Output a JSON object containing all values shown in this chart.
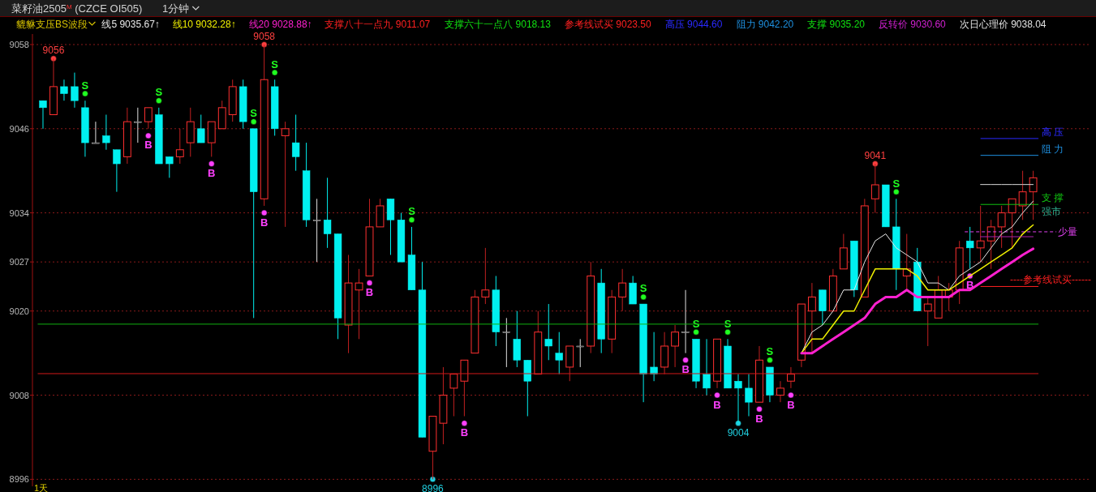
{
  "chart_data": {
    "type": "candlestick",
    "title": "菜籽油2505$^{M}$ (CZCE OI505)",
    "subtitle": "1分钟",
    "xlabel": "1天",
    "categories": [
      null,
      null,
      null,
      null,
      null,
      null,
      null,
      null,
      null,
      null,
      null,
      null,
      null,
      null,
      null,
      null,
      null,
      null,
      null,
      null,
      null,
      null,
      null,
      null,
      null,
      null,
      null,
      null,
      null,
      null,
      null,
      null,
      null,
      null,
      null,
      null,
      null,
      null,
      null,
      null,
      null,
      null,
      null,
      null,
      null,
      null,
      null,
      null,
      null,
      null,
      null,
      null,
      null,
      null,
      null,
      null,
      null,
      null,
      null,
      null,
      null,
      null,
      null,
      null,
      null,
      null,
      null,
      null,
      null,
      null,
      null,
      null,
      null,
      null,
      null,
      null,
      null,
      null,
      null,
      null,
      null,
      null,
      null,
      null,
      null,
      null,
      null,
      null,
      null,
      null,
      null,
      null,
      null,
      null,
      null
    ],
    "ohlc": [
      [
        9050,
        9050,
        9046,
        9049
      ],
      [
        9048,
        9056,
        9048,
        9052
      ],
      [
        9052,
        9053,
        9050,
        9051
      ],
      [
        9052,
        9054,
        9049,
        9050
      ],
      [
        9049,
        9050,
        9042,
        9044
      ],
      [
        9044,
        9047,
        9044,
        9044
      ],
      [
        9045,
        9048,
        9043,
        9044
      ],
      [
        9043,
        9043,
        9037,
        9041
      ],
      [
        9042,
        9049,
        9041,
        9047
      ],
      [
        9047,
        9049,
        9044,
        9047
      ],
      [
        9047,
        9049,
        9046,
        9049
      ],
      [
        9048,
        9049,
        9041,
        9041
      ],
      [
        9042,
        9042,
        9039,
        9041
      ],
      [
        9042,
        9046,
        9041,
        9043
      ],
      [
        9044,
        9049,
        9042,
        9047
      ],
      [
        9046,
        9048,
        9044,
        9044
      ],
      [
        9044,
        9047,
        9042,
        9047
      ],
      [
        9046,
        9050,
        9046,
        9049
      ],
      [
        9048,
        9053,
        9047,
        9052
      ],
      [
        9052,
        9053,
        9046,
        9047
      ],
      [
        9046,
        9046,
        9019,
        9037
      ],
      [
        9036,
        9058,
        9035,
        9053
      ],
      [
        9052,
        9053,
        9045,
        9046
      ],
      [
        9045,
        9047,
        9032,
        9046
      ],
      [
        9044,
        9048,
        9040,
        9042
      ],
      [
        9040,
        9044,
        9032,
        9033
      ],
      [
        9033,
        9036,
        9027,
        9033
      ],
      [
        9033,
        9039,
        9029,
        9031
      ],
      [
        9031,
        9031,
        9016,
        9019
      ],
      [
        9018,
        9028,
        9014,
        9024
      ],
      [
        9023,
        9026,
        9016,
        9024
      ],
      [
        9025,
        9036,
        9025,
        9032
      ],
      [
        9032,
        9036,
        9032,
        9035
      ],
      [
        9036,
        9036,
        9028,
        9033
      ],
      [
        9033,
        9034,
        9027,
        9027
      ],
      [
        9028,
        9032,
        9023,
        9023
      ],
      [
        9023,
        9027,
        9002,
        9002
      ],
      [
        9000,
        9005,
        8996,
        9005
      ],
      [
        9004,
        9012,
        9001,
        9008
      ],
      [
        9009,
        9011,
        9005,
        9011
      ],
      [
        9010,
        9013,
        9005,
        9013
      ],
      [
        9014,
        9023,
        9014,
        9022
      ],
      [
        9022,
        9029,
        9021,
        9023
      ],
      [
        9023,
        9025,
        9015,
        9017
      ],
      [
        9017,
        9019,
        9012,
        9017
      ],
      [
        9016,
        9020,
        9012,
        9013
      ],
      [
        9013,
        9013,
        9005,
        9010
      ],
      [
        9011,
        9020,
        9011,
        9017
      ],
      [
        9016,
        9021,
        9013,
        9015
      ],
      [
        9014,
        9017,
        9011,
        9013
      ],
      [
        9012,
        9015,
        9010,
        9015
      ],
      [
        9015,
        9016,
        9012,
        9015
      ],
      [
        9015,
        9027,
        9014,
        9025
      ],
      [
        9024,
        9026,
        9014,
        9016
      ],
      [
        9016,
        9023,
        9014,
        9022
      ],
      [
        9022,
        9026,
        9020,
        9024
      ],
      [
        9024,
        9025,
        9021,
        9021
      ],
      [
        9021,
        9021,
        9007,
        9011
      ],
      [
        9012,
        9017,
        9010,
        9011
      ],
      [
        9012,
        9017,
        9011,
        9015
      ],
      [
        9015,
        9018,
        9012,
        9017
      ],
      [
        9017,
        9023,
        9014,
        9017
      ],
      [
        9016,
        9016,
        9009,
        9010
      ],
      [
        9011,
        9016,
        9008,
        9009
      ],
      [
        9010,
        9016,
        9009,
        9016
      ],
      [
        9015,
        9016,
        9009,
        9009
      ],
      [
        9010,
        9011,
        9004,
        9009
      ],
      [
        9009,
        9011,
        9005,
        9007
      ],
      [
        9007,
        9015,
        9007,
        9013
      ],
      [
        9012,
        9012,
        9007,
        9008
      ],
      [
        9008,
        9010,
        9007,
        9009
      ],
      [
        9010,
        9012,
        9009,
        9011
      ],
      [
        9013,
        9021,
        9012,
        9021
      ],
      [
        9020,
        9024,
        9014,
        9022
      ],
      [
        9023,
        9023,
        9018,
        9020
      ],
      [
        9020,
        9026,
        9020,
        9025
      ],
      [
        9026,
        9031,
        9026,
        9029
      ],
      [
        9030,
        9030,
        9022,
        9023
      ],
      [
        9022,
        9036,
        9022,
        9035
      ],
      [
        9036,
        9041,
        9034,
        9038
      ],
      [
        9038,
        9038,
        9032,
        9032
      ],
      [
        9032,
        9036,
        9023,
        9026
      ],
      [
        9025,
        9031,
        9023,
        9026
      ],
      [
        9027,
        9029,
        9020,
        9020
      ],
      [
        9020,
        9022,
        9015,
        9021
      ],
      [
        9019,
        9025,
        9019,
        9023
      ],
      [
        9022,
        9024,
        9020,
        9023
      ],
      [
        9023,
        9030,
        9021,
        9029
      ],
      [
        9030,
        9032,
        9026,
        9029
      ],
      [
        9029,
        9035,
        9027,
        9030
      ],
      [
        9030,
        9033,
        9026,
        9032
      ],
      [
        9032,
        9035,
        9029,
        9034
      ],
      [
        9034,
        9036,
        9029,
        9036
      ],
      [
        9035,
        9040,
        9033,
        9037
      ],
      [
        9037,
        9040,
        9033,
        9039
      ]
    ],
    "series": [
      {
        "type": "line",
        "name": "线5 9035.67↑",
        "color": "#e8e8e8",
        "values": [
          null,
          null,
          null,
          null,
          null,
          null,
          null,
          null,
          null,
          null,
          null,
          null,
          null,
          null,
          null,
          null,
          null,
          null,
          null,
          null,
          null,
          null,
          null,
          null,
          null,
          null,
          null,
          null,
          null,
          null,
          null,
          null,
          null,
          null,
          null,
          null,
          null,
          null,
          null,
          null,
          null,
          null,
          null,
          null,
          null,
          null,
          null,
          null,
          null,
          null,
          null,
          null,
          null,
          null,
          null,
          null,
          null,
          null,
          null,
          null,
          null,
          null,
          null,
          null,
          null,
          null,
          null,
          null,
          null,
          null,
          null,
          null,
          9014,
          9017,
          9018,
          9020,
          9023,
          9023,
          9027,
          9030,
          9031,
          9029,
          9028,
          9027,
          9024,
          9024,
          9023,
          9025,
          9026,
          9027,
          9029,
          9031,
          9032,
          9034,
          9035.67
        ]
      },
      {
        "type": "line",
        "name": "线10 9032.28↑",
        "color": "#f0f000",
        "values": [
          null,
          null,
          null,
          null,
          null,
          null,
          null,
          null,
          null,
          null,
          null,
          null,
          null,
          null,
          null,
          null,
          null,
          null,
          null,
          null,
          null,
          null,
          null,
          null,
          null,
          null,
          null,
          null,
          null,
          null,
          null,
          null,
          null,
          null,
          null,
          null,
          null,
          null,
          null,
          null,
          null,
          null,
          null,
          null,
          null,
          null,
          null,
          null,
          null,
          null,
          null,
          null,
          null,
          null,
          null,
          null,
          null,
          null,
          null,
          null,
          null,
          null,
          null,
          null,
          null,
          null,
          null,
          null,
          null,
          null,
          null,
          null,
          9014,
          9016,
          9016,
          9018,
          9020,
          9020,
          9023,
          9026,
          9026,
          9026,
          9026,
          9025,
          9023,
          9023,
          9023,
          9024,
          9025,
          9026,
          9027,
          9028,
          9029,
          9031,
          9032.28
        ]
      },
      {
        "type": "line",
        "name": "线20 9028.88↑",
        "color": "#ff20d0",
        "values": [
          null,
          null,
          null,
          null,
          null,
          null,
          null,
          null,
          null,
          null,
          null,
          null,
          null,
          null,
          null,
          null,
          null,
          null,
          null,
          null,
          null,
          null,
          null,
          null,
          null,
          null,
          null,
          null,
          null,
          null,
          null,
          null,
          null,
          null,
          null,
          null,
          null,
          null,
          null,
          null,
          null,
          null,
          null,
          null,
          null,
          null,
          null,
          null,
          null,
          null,
          null,
          null,
          null,
          null,
          null,
          null,
          null,
          null,
          null,
          null,
          null,
          null,
          null,
          null,
          null,
          null,
          null,
          null,
          null,
          null,
          null,
          null,
          9014,
          9014,
          9015,
          9016,
          9017,
          9018,
          9019,
          9021,
          9022,
          9022,
          9023,
          9022,
          9022,
          9022,
          9022,
          9023,
          9023,
          9024,
          9025,
          9026,
          9027,
          9028,
          9028.88
        ]
      },
      {
        "type": "line",
        "color": "#b020b0",
        "values": [
          null,
          null,
          null,
          null,
          null,
          null,
          null,
          null,
          null,
          null,
          null,
          null,
          null,
          null,
          null,
          null,
          null,
          null,
          null,
          null,
          null,
          null,
          null,
          null,
          null,
          null,
          null,
          null,
          null,
          null,
          null,
          null,
          null,
          null,
          null,
          null,
          null,
          null,
          null,
          null,
          null,
          null,
          null,
          null,
          null,
          null,
          null,
          null,
          null,
          null,
          null,
          null,
          null,
          null,
          null,
          null,
          null,
          null,
          null,
          null,
          null,
          null,
          null,
          null,
          null,
          null,
          null,
          null,
          null,
          null,
          null,
          null,
          null,
          null,
          null,
          null,
          null,
          null,
          null,
          null,
          null,
          null,
          null,
          null,
          null,
          null,
          null,
          null,
          null,
          9030.6,
          9030.6,
          9030.6,
          9030.6,
          9030.6,
          9030.6
        ]
      },
      {
        "type": "line",
        "color": "#d8d8d8",
        "values": [
          null,
          null,
          null,
          null,
          null,
          null,
          null,
          null,
          null,
          null,
          null,
          null,
          null,
          null,
          null,
          null,
          null,
          null,
          null,
          null,
          null,
          null,
          null,
          null,
          null,
          null,
          null,
          null,
          null,
          null,
          null,
          null,
          null,
          null,
          null,
          null,
          null,
          null,
          null,
          null,
          null,
          null,
          null,
          null,
          null,
          null,
          null,
          null,
          null,
          null,
          null,
          null,
          null,
          null,
          null,
          null,
          null,
          null,
          null,
          null,
          null,
          null,
          null,
          null,
          null,
          null,
          null,
          null,
          null,
          null,
          null,
          null,
          null,
          null,
          null,
          null,
          null,
          null,
          null,
          null,
          null,
          null,
          null,
          null,
          null,
          null,
          null,
          null,
          null,
          9038.04,
          9038.04,
          9038.04,
          9038.04,
          9038.04,
          9038.04
        ]
      },
      {
        "type": "scatter",
        "color": "#20ff20",
        "values": [
          null,
          null,
          null,
          null,
          9051,
          null,
          null,
          null,
          null,
          null,
          null,
          9050,
          null,
          null,
          null,
          null,
          null,
          null,
          null,
          null,
          9047,
          null,
          9054,
          null,
          null,
          null,
          null,
          null,
          null,
          null,
          null,
          null,
          null,
          null,
          null,
          9033,
          null,
          null,
          null,
          null,
          null,
          null,
          null,
          null,
          null,
          null,
          null,
          null,
          null,
          null,
          null,
          null,
          null,
          null,
          null,
          null,
          null,
          9022,
          null,
          null,
          null,
          null,
          9017,
          null,
          null,
          9017,
          null,
          null,
          null,
          9013,
          null,
          null,
          null,
          null,
          null,
          null,
          null,
          null,
          null,
          null,
          null,
          9037,
          null,
          null,
          null,
          null,
          null,
          null,
          null,
          null,
          null,
          null,
          null,
          null,
          null
        ],
        "value_labels": [
          null,
          null,
          null,
          null,
          "S",
          null,
          null,
          null,
          null,
          null,
          null,
          "S",
          null,
          null,
          null,
          null,
          null,
          null,
          null,
          null,
          "S",
          null,
          "S",
          null,
          null,
          null,
          null,
          null,
          null,
          null,
          null,
          null,
          null,
          null,
          null,
          "S",
          null,
          null,
          null,
          null,
          null,
          null,
          null,
          null,
          null,
          null,
          null,
          null,
          null,
          null,
          null,
          null,
          null,
          null,
          null,
          null,
          null,
          "S",
          null,
          null,
          null,
          null,
          "S",
          null,
          null,
          "S",
          null,
          null,
          null,
          "S",
          null,
          null,
          null,
          null,
          null,
          null,
          null,
          null,
          null,
          null,
          null,
          "S",
          null,
          null,
          null,
          null,
          null,
          null,
          null,
          null,
          null,
          null,
          null,
          null,
          null
        ]
      },
      {
        "type": "scatter",
        "color": "#ff40ff",
        "values": [
          null,
          null,
          null,
          null,
          null,
          null,
          null,
          null,
          null,
          null,
          9045,
          null,
          null,
          null,
          null,
          null,
          9041,
          null,
          null,
          null,
          null,
          9034,
          null,
          null,
          null,
          null,
          null,
          null,
          null,
          null,
          null,
          9024,
          null,
          null,
          null,
          null,
          null,
          null,
          null,
          null,
          9004,
          null,
          null,
          null,
          null,
          null,
          null,
          null,
          null,
          null,
          null,
          null,
          null,
          null,
          null,
          null,
          null,
          null,
          null,
          null,
          null,
          9013,
          null,
          null,
          9008,
          null,
          null,
          null,
          9006,
          null,
          null,
          9008,
          null,
          null,
          null,
          null,
          null,
          null,
          null,
          null,
          null,
          null,
          null,
          null,
          null,
          null,
          null,
          null,
          9025,
          null,
          null,
          null,
          null,
          null,
          null
        ],
        "value_labels": [
          null,
          null,
          null,
          null,
          null,
          null,
          null,
          null,
          null,
          null,
          "B",
          null,
          null,
          null,
          null,
          null,
          "B",
          null,
          null,
          null,
          null,
          "B",
          null,
          null,
          null,
          null,
          null,
          null,
          null,
          null,
          null,
          "B",
          null,
          null,
          null,
          null,
          null,
          null,
          null,
          null,
          "B",
          null,
          null,
          null,
          null,
          null,
          null,
          null,
          null,
          null,
          null,
          null,
          null,
          null,
          null,
          null,
          null,
          null,
          null,
          null,
          null,
          "B",
          null,
          null,
          "B",
          null,
          null,
          null,
          "B",
          null,
          null,
          "B",
          null,
          null,
          null,
          null,
          null,
          null,
          null,
          null,
          null,
          null,
          null,
          null,
          null,
          null,
          null,
          null,
          "B",
          null,
          null,
          null,
          null,
          null,
          null
        ]
      },
      {
        "type": "scatter",
        "color": "#ff4040",
        "values": [
          null,
          9056,
          null,
          null,
          null,
          null,
          null,
          null,
          null,
          null,
          null,
          null,
          null,
          null,
          null,
          null,
          null,
          null,
          null,
          null,
          null,
          9058,
          null,
          null,
          null,
          null,
          null,
          null,
          null,
          null,
          null,
          null,
          null,
          null,
          null,
          null,
          null,
          null,
          null,
          null,
          null,
          null,
          null,
          null,
          null,
          null,
          null,
          null,
          null,
          null,
          null,
          null,
          null,
          null,
          null,
          null,
          null,
          null,
          null,
          null,
          null,
          null,
          null,
          null,
          null,
          null,
          null,
          null,
          null,
          null,
          null,
          null,
          null,
          null,
          null,
          null,
          null,
          null,
          null,
          9041,
          null,
          null,
          null,
          null,
          null,
          null,
          null,
          null,
          null,
          null,
          null,
          null,
          null,
          null,
          null
        ],
        "data_labels": true
      },
      {
        "type": "scatter",
        "color": "#20d0e0",
        "values": [
          null,
          null,
          null,
          null,
          null,
          null,
          null,
          null,
          null,
          null,
          null,
          null,
          null,
          null,
          null,
          null,
          null,
          null,
          null,
          null,
          null,
          null,
          null,
          null,
          null,
          null,
          null,
          null,
          null,
          null,
          null,
          null,
          null,
          null,
          null,
          null,
          null,
          8996,
          null,
          null,
          null,
          null,
          null,
          null,
          null,
          null,
          null,
          null,
          null,
          null,
          null,
          null,
          null,
          null,
          null,
          null,
          null,
          null,
          null,
          null,
          null,
          null,
          null,
          null,
          null,
          null,
          9004,
          null,
          null,
          null,
          null,
          null,
          null,
          null,
          null,
          null,
          null,
          null,
          null,
          null,
          null,
          null,
          null,
          null,
          null,
          null,
          null,
          null,
          null,
          null,
          null,
          null,
          null,
          null,
          null
        ],
        "data_labels": true
      }
    ],
    "ylim": [
      8995,
      9059.5
    ],
    "yticks": [
      9058,
      9046,
      9034,
      9027,
      9020,
      9008,
      8996
    ],
    "grid": "y",
    "ref_lines": [
      {
        "axis": "y",
        "value": 9011.07,
        "color": "#d01818"
      },
      {
        "axis": "y",
        "value": 9018.13,
        "color": "#10b010"
      },
      {
        "axis": "y",
        "value": 9023.5,
        "label": "----参考线试买------",
        "color": "#ff2020"
      },
      {
        "axis": "y",
        "value": 9044.6,
        "label": "高 压",
        "color": "#2a2aff"
      },
      {
        "axis": "y",
        "value": 9042.2,
        "label": "阻 力",
        "color": "#1e90e0"
      },
      {
        "axis": "y",
        "value": 9035.2,
        "label": "支 撑",
        "color": "#10c010"
      },
      {
        "axis": "y",
        "value": 9031.3,
        "label": "少量",
        "color": "#e040f0",
        "line_style": "dashed"
      }
    ],
    "annotations": [
      "貔貅支压BS波段",
      "支撑八十一点九 9011.07",
      "支撑六十一点八 9018.13",
      "参考线试买 9023.50",
      "高压 9044.60",
      "阻力 9042.20",
      "支撑 9035.20",
      "反转价 9030.60",
      "次日心理价 9038.04",
      "强市"
    ]
  }
}
